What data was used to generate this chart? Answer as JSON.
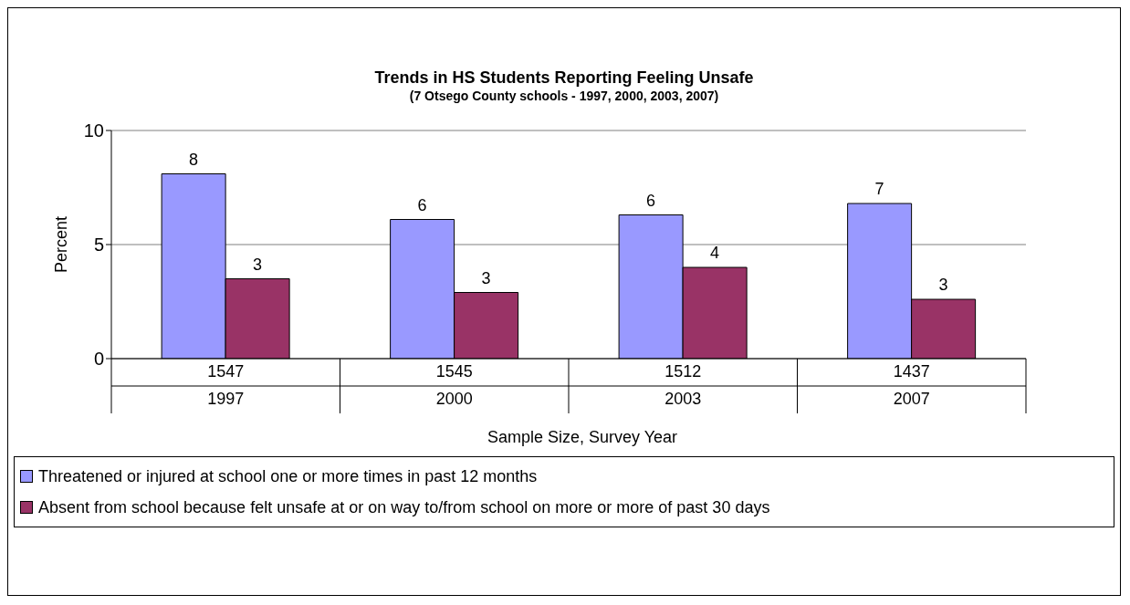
{
  "chart_data": {
    "type": "bar",
    "title": "Trends in HS Students Reporting Feeling Unsafe",
    "subtitle": "(7 Otsego County schools - 1997, 2000, 2003, 2007)",
    "xlabel": "Sample Size, Survey Year",
    "ylabel": "Percent",
    "categories": [
      "1547\n1997",
      "1545\n2000",
      "1512\n2003",
      "1437\n2007"
    ],
    "series": [
      {
        "name": "Threatened or injured at school one or more times in past 12 months",
        "color": "#9999ff",
        "values": [
          8.1,
          6.1,
          6.3,
          6.8
        ],
        "value_labels": [
          "8",
          "6",
          "6",
          "7"
        ]
      },
      {
        "name": "Absent from school because felt unsafe at or on way to/from school on more or more of past 30 days",
        "color": "#993366",
        "values": [
          3.5,
          2.9,
          4.0,
          2.6
        ],
        "value_labels": [
          "3",
          "3",
          "4",
          "3"
        ]
      }
    ],
    "ylim": [
      0,
      10
    ],
    "yticks": [
      0,
      5,
      10
    ],
    "grid": "y",
    "legend": "bottom"
  }
}
